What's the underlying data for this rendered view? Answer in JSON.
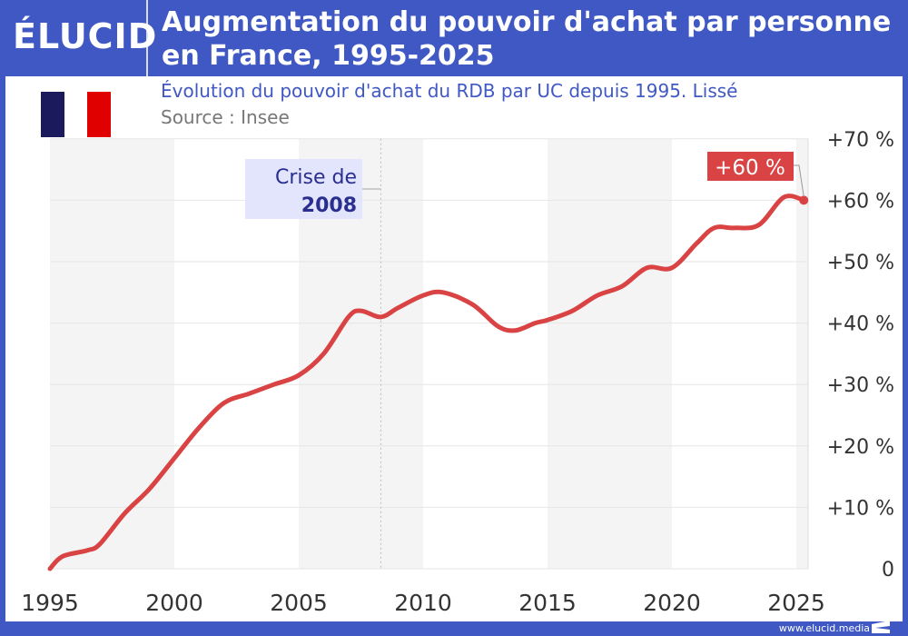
{
  "header": {
    "logo": "ÉLUCID",
    "title_line1": "Augmentation du pouvoir d'achat par personne",
    "title_line2": "en France, 1995-2025"
  },
  "subtitle": "Évolution du pouvoir d'achat du RDB par UC depuis 1995. Lissé",
  "source": "Source : Insee",
  "footer": {
    "url": "www.elucid.media"
  },
  "colors": {
    "brand": "#3f58c4",
    "line": "#d94343",
    "annotation_bg": "#e3e5fd",
    "annotation_text": "#2a2f8f",
    "flag": [
      "#1b1a5c",
      "#ffffff",
      "#e00000"
    ]
  },
  "chart_data": {
    "type": "line",
    "title": "",
    "xlabel": "",
    "ylabel": "",
    "xlim": [
      1995,
      2025.5
    ],
    "ylim": [
      0,
      70
    ],
    "x_ticks": [
      1995,
      2000,
      2005,
      2010,
      2015,
      2020,
      2025
    ],
    "y_ticks": [
      {
        "v": 0,
        "label": "0"
      },
      {
        "v": 10,
        "label": "+10 %"
      },
      {
        "v": 20,
        "label": "+20 %"
      },
      {
        "v": 30,
        "label": "+30 %"
      },
      {
        "v": 40,
        "label": "+40 %"
      },
      {
        "v": 50,
        "label": "+50 %"
      },
      {
        "v": 60,
        "label": "+60 %"
      },
      {
        "v": 70,
        "label": "+70 %"
      }
    ],
    "grid": true,
    "series": [
      {
        "x": [
          1995,
          1995.5,
          1996.5,
          1997,
          1998,
          1999,
          2000,
          2001,
          2002,
          2003,
          2004,
          2005,
          2006,
          2007,
          2007.5,
          2008.3,
          2009,
          2010,
          2010.8,
          2012,
          2013,
          2013.7,
          2014.5,
          2015,
          2016,
          2017,
          2018,
          2019,
          2020,
          2021,
          2021.7,
          2022.5,
          2023.5,
          2024.5,
          2025.3
        ],
        "y": [
          0,
          2,
          3,
          4,
          9,
          13,
          18,
          23,
          27,
          28.5,
          30,
          31.5,
          35,
          41,
          42,
          41,
          42.5,
          44.5,
          45,
          43,
          39.5,
          38.8,
          40,
          40.5,
          42,
          44.5,
          46,
          49,
          49,
          53,
          55.5,
          55.5,
          56,
          60.5,
          60
        ]
      }
    ],
    "annotations": [
      {
        "label_line1": "Crise de",
        "label_line2": "2008",
        "x": 2008.3
      },
      {
        "label": "+60 %",
        "x": 2025.3,
        "y": 60
      }
    ]
  }
}
